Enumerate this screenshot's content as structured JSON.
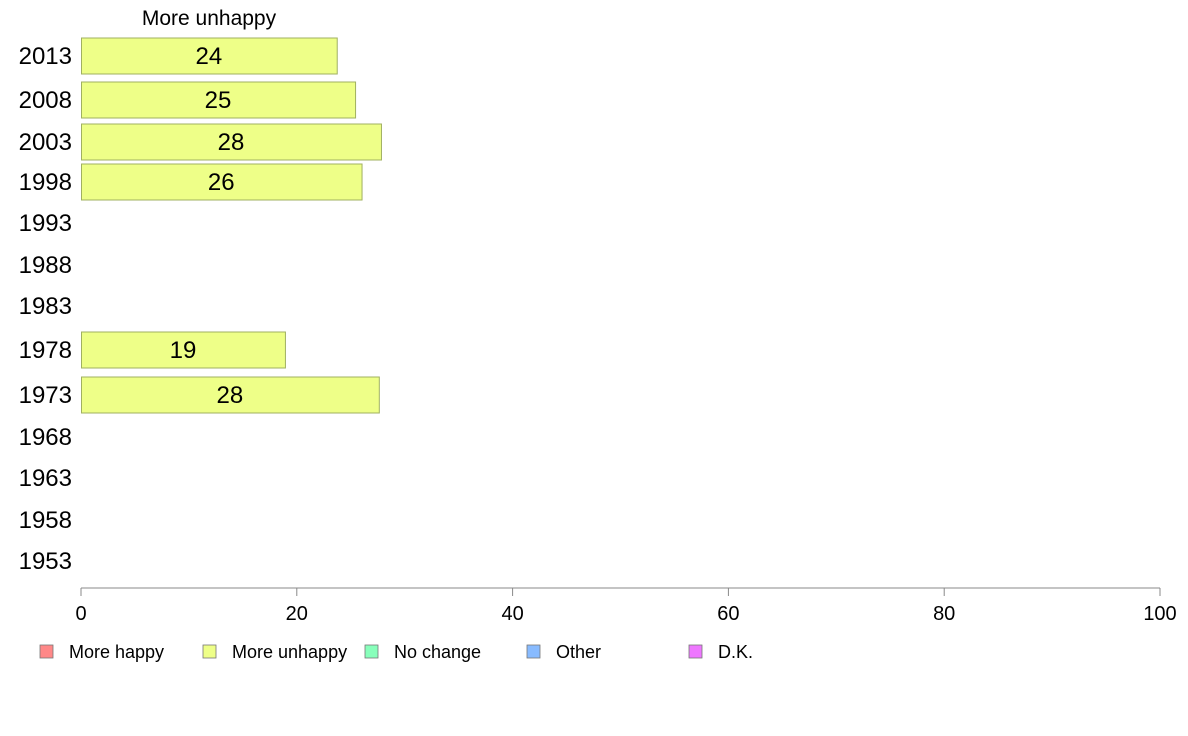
{
  "chart_data": {
    "type": "bar",
    "orientation": "horizontal",
    "series_title": "More unhappy",
    "categories": [
      "2013",
      "2008",
      "2003",
      "1998",
      "1993",
      "1988",
      "1983",
      "1978",
      "1973",
      "1968",
      "1963",
      "1958",
      "1953"
    ],
    "series": [
      {
        "name": "More unhappy",
        "color": "#eeff88",
        "values": [
          23.7,
          25.4,
          27.8,
          26.0,
          null,
          null,
          null,
          18.9,
          27.6,
          null,
          null,
          null,
          null
        ],
        "labels": [
          "24",
          "25",
          "28",
          "26",
          "",
          "",
          "",
          "19",
          "28",
          "",
          "",
          "",
          ""
        ]
      }
    ],
    "xlim": [
      0,
      100
    ],
    "xticks": [
      "0",
      "20",
      "40",
      "60",
      "80",
      "100"
    ],
    "grid": false,
    "legend": {
      "position": "bottom",
      "items": [
        {
          "label": "More happy",
          "color": "#ff8888"
        },
        {
          "label": "More unhappy",
          "color": "#eeff88"
        },
        {
          "label": "No change",
          "color": "#88ffbb"
        },
        {
          "label": "Other",
          "color": "#88bbff"
        },
        {
          "label": "D.K.",
          "color": "#ee77ff"
        }
      ]
    }
  }
}
